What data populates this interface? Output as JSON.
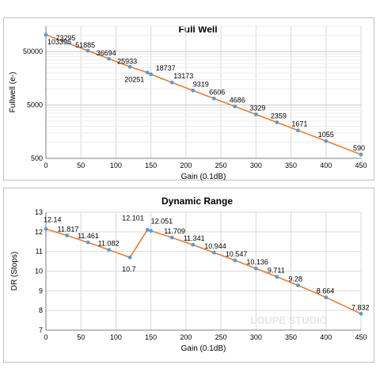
{
  "colors": {
    "line": "#ed7d31",
    "marker": "#5b9bd5",
    "grid": "#d9d9d9",
    "axis": "#7f7f7f",
    "text": "#000000"
  },
  "watermark": "LOUPE STUDIO",
  "chart_data": [
    {
      "type": "line",
      "title": "Full Well",
      "xlabel": "Gain (0.1dB)",
      "ylabel": "Fullwell (e-)",
      "yscale": "log",
      "xlim": [
        0,
        450
      ],
      "ylim": [
        500,
        150000
      ],
      "xticks": [
        "0",
        "50",
        "100",
        "150",
        "200",
        "250",
        "300",
        "350",
        "400",
        "450"
      ],
      "yticks": [
        "500",
        "5000",
        "50000"
      ],
      "grid": true,
      "points": [
        {
          "x": 0,
          "y": 103396,
          "label": "103396"
        },
        {
          "x": 30,
          "y": 73295,
          "label": "73295"
        },
        {
          "x": 60,
          "y": 51885,
          "label": "51885"
        },
        {
          "x": 90,
          "y": 36694,
          "label": "36694"
        },
        {
          "x": 120,
          "y": 25933,
          "label": "25933"
        },
        {
          "x": 145,
          "y": 20251,
          "label": "20251"
        },
        {
          "x": 150,
          "y": 18737,
          "label": "18737"
        },
        {
          "x": 180,
          "y": 13173,
          "label": "13173"
        },
        {
          "x": 210,
          "y": 9319,
          "label": "9319"
        },
        {
          "x": 240,
          "y": 6606,
          "label": "6606"
        },
        {
          "x": 270,
          "y": 4686,
          "label": "4686"
        },
        {
          "x": 300,
          "y": 3329,
          "label": "3329"
        },
        {
          "x": 330,
          "y": 2359,
          "label": "2359"
        },
        {
          "x": 360,
          "y": 1671,
          "label": "1671"
        },
        {
          "x": 400,
          "y": 1055,
          "label": "1055"
        },
        {
          "x": 450,
          "y": 590,
          "label": "590"
        }
      ]
    },
    {
      "type": "line",
      "title": "Dynamic Range",
      "xlabel": "Gain (0.1dB)",
      "ylabel": "DR (Stops)",
      "xlim": [
        0,
        450
      ],
      "ylim": [
        7,
        13
      ],
      "xticks": [
        "0",
        "50",
        "100",
        "150",
        "200",
        "250",
        "300",
        "350",
        "400",
        "450"
      ],
      "yticks": [
        "7",
        "8",
        "9",
        "10",
        "11",
        "12",
        "13"
      ],
      "grid": true,
      "points": [
        {
          "x": 0,
          "y": 12.14,
          "label": "12.14"
        },
        {
          "x": 30,
          "y": 11.817,
          "label": "11.817"
        },
        {
          "x": 60,
          "y": 11.461,
          "label": "11.461"
        },
        {
          "x": 90,
          "y": 11.082,
          "label": "11.082"
        },
        {
          "x": 120,
          "y": 10.7,
          "label": "10.7"
        },
        {
          "x": 145,
          "y": 12.101,
          "label": "12.101"
        },
        {
          "x": 150,
          "y": 12.051,
          "label": "12.051"
        },
        {
          "x": 180,
          "y": 11.709,
          "label": "11.709"
        },
        {
          "x": 210,
          "y": 11.341,
          "label": "11.341"
        },
        {
          "x": 240,
          "y": 10.944,
          "label": "10.944"
        },
        {
          "x": 270,
          "y": 10.547,
          "label": "10.547"
        },
        {
          "x": 300,
          "y": 10.136,
          "label": "10.136"
        },
        {
          "x": 330,
          "y": 9.711,
          "label": "9.711"
        },
        {
          "x": 360,
          "y": 9.28,
          "label": "9.28"
        },
        {
          "x": 400,
          "y": 8.664,
          "label": "8.664"
        },
        {
          "x": 450,
          "y": 7.832,
          "label": "7.832"
        }
      ]
    }
  ]
}
